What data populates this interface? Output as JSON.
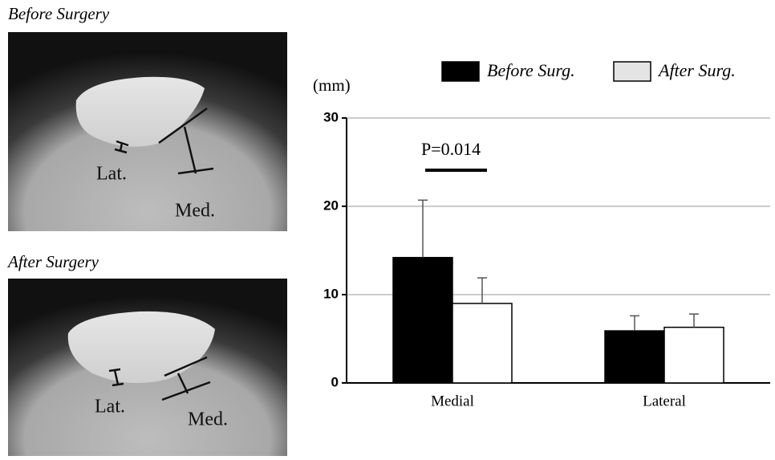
{
  "chart_data": {
    "type": "bar",
    "y_label": "(mm)",
    "annotation": "P=0.014",
    "categories": [
      "Medial",
      "Lateral"
    ],
    "series": [
      {
        "name": "Before Surg.",
        "color": "#000000",
        "values": [
          14.2,
          5.9
        ],
        "errors": [
          6.5,
          1.7
        ]
      },
      {
        "name": "After Surg.",
        "color": "#ffffff",
        "values": [
          9.0,
          6.3
        ],
        "errors": [
          2.9,
          1.5
        ]
      }
    ],
    "ylim": [
      0,
      30
    ],
    "yticks": [
      0,
      10,
      20,
      30
    ],
    "grid": true
  },
  "images": [
    {
      "title": "Before Surgery",
      "labels": [
        "Lat.",
        "Med."
      ]
    },
    {
      "title": "After Surgery",
      "labels": [
        "Lat.",
        "Med."
      ]
    }
  ]
}
